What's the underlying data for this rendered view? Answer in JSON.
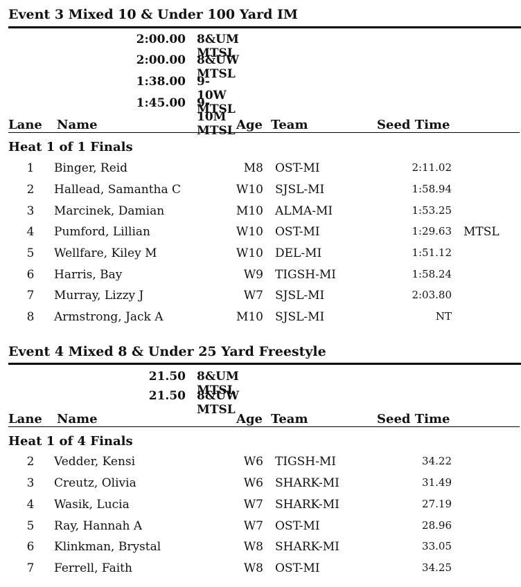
{
  "events": [
    {
      "title": "Event  3   Mixed 10 & Under 100 Yard IM",
      "standards": [
        {
          "time": "2:00.00",
          "label": "8&UM MTSL"
        },
        {
          "time": "2:00.00",
          "label": "8&UW MTSL"
        },
        {
          "time": "1:38.00",
          "label": "9-10W MTSL"
        },
        {
          "time": "1:45.00",
          "label": "9-10M MTSL"
        }
      ],
      "headers": {
        "lane": "Lane",
        "name": "Name",
        "age": "Age",
        "team": "Team",
        "seed": "Seed Time"
      },
      "heat": "Heat   1 of 1   Finals",
      "rows": [
        {
          "lane": "1",
          "name": "Binger, Reid",
          "age": "M8",
          "team": "OST-MI",
          "seed": "2:11.02",
          "std": ""
        },
        {
          "lane": "2",
          "name": "Hallead, Samantha C",
          "age": "W10",
          "team": "SJSL-MI",
          "seed": "1:58.94",
          "std": ""
        },
        {
          "lane": "3",
          "name": "Marcinek, Damian",
          "age": "M10",
          "team": "ALMA-MI",
          "seed": "1:53.25",
          "std": ""
        },
        {
          "lane": "4",
          "name": "Pumford, Lillian",
          "age": "W10",
          "team": "OST-MI",
          "seed": "1:29.63",
          "std": "MTSL"
        },
        {
          "lane": "5",
          "name": "Wellfare, Kiley M",
          "age": "W10",
          "team": "DEL-MI",
          "seed": "1:51.12",
          "std": ""
        },
        {
          "lane": "6",
          "name": "Harris, Bay",
          "age": "W9",
          "team": "TIGSH-MI",
          "seed": "1:58.24",
          "std": ""
        },
        {
          "lane": "7",
          "name": "Murray, Lizzy J",
          "age": "W7",
          "team": "SJSL-MI",
          "seed": "2:03.80",
          "std": ""
        },
        {
          "lane": "8",
          "name": "Armstrong, Jack A",
          "age": "M10",
          "team": "SJSL-MI",
          "seed": "NT",
          "std": ""
        }
      ]
    },
    {
      "title": "Event  4   Mixed 8 & Under 25 Yard Freestyle",
      "standards": [
        {
          "time": "21.50",
          "label": "8&UM MTSL"
        },
        {
          "time": "21.50",
          "label": "8&UW MTSL"
        }
      ],
      "headers": {
        "lane": "Lane",
        "name": "Name",
        "age": "Age",
        "team": "Team",
        "seed": "Seed Time"
      },
      "heat": "Heat   1 of 4   Finals",
      "rows": [
        {
          "lane": "2",
          "name": "Vedder, Kensi",
          "age": "W6",
          "team": "TIGSH-MI",
          "seed": "34.22",
          "std": ""
        },
        {
          "lane": "3",
          "name": "Creutz, Olivia",
          "age": "W6",
          "team": "SHARK-MI",
          "seed": "31.49",
          "std": ""
        },
        {
          "lane": "4",
          "name": "Wasik, Lucia",
          "age": "W7",
          "team": "SHARK-MI",
          "seed": "27.19",
          "std": ""
        },
        {
          "lane": "5",
          "name": "Ray, Hannah A",
          "age": "W7",
          "team": "OST-MI",
          "seed": "28.96",
          "std": ""
        },
        {
          "lane": "6",
          "name": "Klinkman, Brystal",
          "age": "W8",
          "team": "SHARK-MI",
          "seed": "33.05",
          "std": ""
        },
        {
          "lane": "7",
          "name": "Ferrell, Faith",
          "age": "W8",
          "team": "OST-MI",
          "seed": "34.25",
          "std": ""
        }
      ]
    }
  ]
}
